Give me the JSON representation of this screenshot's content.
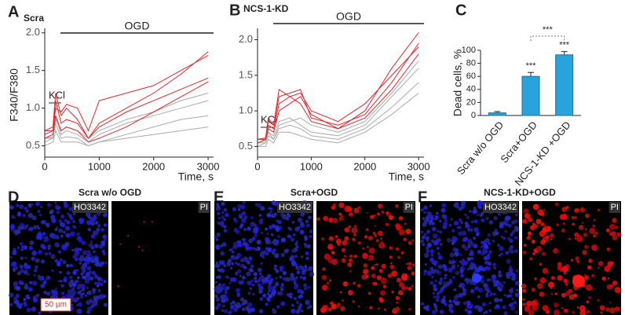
{
  "chart_data": [
    {
      "type": "line",
      "panel_label": "A",
      "title": "Scra",
      "ylabel": "F340/F380",
      "xlabel": "Time, s",
      "annotations": [
        "OGD",
        "KCl"
      ],
      "x": [
        0,
        150,
        200,
        300,
        400,
        600,
        800,
        1000,
        1500,
        2000,
        2500,
        3000
      ],
      "series": [
        {
          "color": "#aaaaaa",
          "values": [
            0.6,
            0.62,
            0.9,
            0.65,
            0.7,
            0.65,
            0.55,
            0.65,
            0.8,
            0.9,
            1.0,
            1.1
          ]
        },
        {
          "color": "#aaaaaa",
          "values": [
            0.55,
            0.6,
            0.8,
            0.6,
            0.62,
            0.6,
            0.5,
            0.55,
            0.65,
            0.75,
            0.85,
            0.9
          ]
        },
        {
          "color": "#aaaaaa",
          "values": [
            0.6,
            0.6,
            0.85,
            0.7,
            0.75,
            0.7,
            0.6,
            0.7,
            0.85,
            0.95,
            1.1,
            1.2
          ]
        },
        {
          "color": "#aaaaaa",
          "values": [
            0.5,
            0.55,
            0.7,
            0.55,
            0.55,
            0.55,
            0.5,
            0.55,
            0.6,
            0.65,
            0.7,
            0.75
          ]
        },
        {
          "color": "#e0282e",
          "values": [
            0.7,
            0.75,
            1.2,
            0.9,
            1.0,
            0.85,
            0.6,
            0.8,
            1.0,
            1.2,
            1.45,
            1.75
          ]
        },
        {
          "color": "#e0282e",
          "values": [
            0.65,
            0.7,
            1.0,
            0.95,
            1.05,
            1.0,
            0.7,
            1.1,
            1.2,
            1.3,
            1.5,
            1.7
          ]
        },
        {
          "color": "#e0282e",
          "values": [
            0.7,
            0.7,
            1.1,
            0.8,
            0.85,
            0.8,
            0.6,
            0.75,
            0.95,
            1.1,
            1.25,
            1.4
          ]
        },
        {
          "color": "#e0282e",
          "values": [
            0.6,
            0.65,
            0.9,
            0.7,
            0.75,
            0.7,
            0.55,
            0.6,
            0.75,
            0.95,
            1.15,
            1.35
          ]
        }
      ],
      "xlim": [
        0,
        3100
      ],
      "xticks": [
        0,
        1000,
        2000,
        3000
      ],
      "ylim": [
        0.35,
        2.05
      ],
      "yticks": [
        {
          "value": 0.5,
          "label": "0.5"
        },
        {
          "value": 1,
          "label": "1.0"
        },
        {
          "value": 1.5,
          "label": "1.5"
        },
        {
          "value": 2,
          "label": "2.0"
        }
      ]
    },
    {
      "type": "line",
      "panel_label": "B",
      "title": "NCS-1-KD",
      "xlabel": "Time, s",
      "annotations": [
        "OGD",
        "KCl"
      ],
      "x": [
        0,
        150,
        200,
        300,
        400,
        600,
        800,
        1000,
        1500,
        2000,
        2500,
        3000
      ],
      "series": [
        {
          "color": "#aaaaaa",
          "values": [
            0.55,
            0.58,
            0.7,
            0.65,
            0.85,
            0.9,
            0.8,
            0.7,
            0.65,
            0.8,
            1.2,
            1.6
          ]
        },
        {
          "color": "#aaaaaa",
          "values": [
            0.5,
            0.55,
            0.65,
            0.6,
            0.75,
            0.8,
            0.75,
            0.65,
            0.6,
            0.75,
            1.05,
            1.4
          ]
        },
        {
          "color": "#aaaaaa",
          "values": [
            0.55,
            0.55,
            0.7,
            0.6,
            0.8,
            0.85,
            0.9,
            0.8,
            0.7,
            0.85,
            1.25,
            1.7
          ]
        },
        {
          "color": "#aaaaaa",
          "values": [
            0.5,
            0.5,
            0.6,
            0.55,
            0.7,
            0.7,
            0.65,
            0.6,
            0.55,
            0.7,
            0.95,
            1.25
          ]
        },
        {
          "color": "#e0282e",
          "values": [
            0.6,
            0.62,
            0.9,
            0.8,
            1.3,
            1.2,
            1.1,
            0.85,
            0.75,
            1.0,
            1.6,
            2.1
          ]
        },
        {
          "color": "#e0282e",
          "values": [
            0.6,
            0.6,
            0.85,
            0.8,
            1.2,
            1.25,
            1.3,
            0.9,
            0.8,
            0.95,
            1.4,
            1.95
          ]
        },
        {
          "color": "#e0282e",
          "values": [
            0.55,
            0.6,
            0.8,
            0.75,
            1.1,
            1.2,
            1.25,
            1.0,
            0.85,
            1.1,
            1.5,
            1.9
          ]
        },
        {
          "color": "#e0282e",
          "values": [
            0.6,
            0.6,
            0.75,
            0.7,
            1.0,
            1.1,
            1.2,
            0.95,
            0.75,
            0.9,
            1.3,
            1.8
          ]
        }
      ],
      "xlim": [
        0,
        3100
      ],
      "xticks": [
        0,
        1000,
        2000,
        3000
      ],
      "ylim": [
        0.35,
        2.15
      ],
      "yticks": [
        {
          "value": 0.5,
          "label": "0.5"
        },
        {
          "value": 1,
          "label": "1.0"
        },
        {
          "value": 1.5,
          "label": "1.5"
        },
        {
          "value": 2,
          "label": "2.0"
        }
      ]
    },
    {
      "type": "bar",
      "panel_label": "C",
      "ylabel": "Dead cells, %",
      "categories": [
        "Scra w/o OGD",
        "Scra+OGD",
        "NCS-1-KD +OGD"
      ],
      "values": [
        4,
        60,
        93
      ],
      "errors": [
        2,
        6,
        5
      ],
      "color": "#29a3dc",
      "significance": [
        null,
        "***",
        "***"
      ],
      "bracket_label": "***",
      "ylim": [
        0,
        100
      ],
      "yticks": [
        0,
        20,
        40,
        60,
        80,
        100
      ]
    }
  ],
  "micrographs": [
    {
      "label": "D",
      "title": "Scra w/o OGD",
      "channels": [
        "HO3342",
        "PI"
      ]
    },
    {
      "label": "E",
      "title": "Scra+OGD",
      "channels": [
        "HO3342",
        "PI"
      ]
    },
    {
      "label": "F",
      "title": "NCS-1-KD+OGD",
      "channels": [
        "HO3342",
        "PI"
      ]
    }
  ],
  "scale_bar": "50 µm"
}
